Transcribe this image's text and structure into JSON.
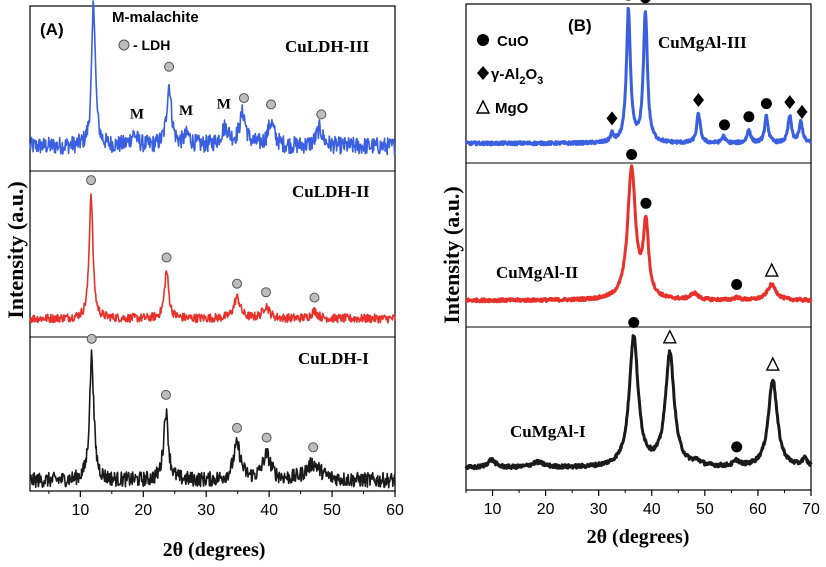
{
  "chart_data": [
    {
      "type": "line",
      "panel_label": "(A)",
      "xlabel": "2θ (degrees)",
      "ylabel": "Intensity (a.u.)",
      "xlim": [
        2,
        60
      ],
      "xticks": [
        10,
        20,
        30,
        40,
        50,
        60
      ],
      "legend": [
        {
          "marker": "text",
          "symbol": "M",
          "label": "M-malachite"
        },
        {
          "marker": "gray-circle",
          "label": "- LDH"
        }
      ],
      "series": [
        {
          "name": "CuLDH-III",
          "color": "#3a5fe0",
          "baseline_noise": 0.06,
          "peaks": [
            {
              "x": 12.1,
              "height": 1.0,
              "width": 0.35
            },
            {
              "x": 24.1,
              "height": 0.42,
              "width": 0.45
            },
            {
              "x": 18.5,
              "height": 0.08,
              "width": 0.6
            },
            {
              "x": 27.0,
              "height": 0.07,
              "width": 0.6
            },
            {
              "x": 33.0,
              "height": 0.12,
              "width": 0.8
            },
            {
              "x": 35.8,
              "height": 0.22,
              "width": 0.6
            },
            {
              "x": 40.3,
              "height": 0.16,
              "width": 0.6
            },
            {
              "x": 48.0,
              "height": 0.12,
              "width": 0.6
            }
          ],
          "ldh_markers": [
            12.1,
            24.1,
            36.0,
            40.3,
            48.3
          ],
          "m_labels": [
            {
              "x": 19.0,
              "text": "M"
            },
            {
              "x": 26.8,
              "text": "M"
            },
            {
              "x": 32.8,
              "text": "M"
            }
          ]
        },
        {
          "name": "CuLDH-II",
          "color": "#e8312b",
          "baseline_noise": 0.035,
          "peaks": [
            {
              "x": 11.7,
              "height": 1.0,
              "width": 0.35
            },
            {
              "x": 23.7,
              "height": 0.38,
              "width": 0.4
            },
            {
              "x": 34.9,
              "height": 0.17,
              "width": 0.6
            },
            {
              "x": 39.5,
              "height": 0.1,
              "width": 0.6
            },
            {
              "x": 47.2,
              "height": 0.06,
              "width": 0.6
            }
          ],
          "ldh_markers": [
            11.7,
            23.7,
            34.9,
            39.5,
            47.2
          ]
        },
        {
          "name": "CuLDH-I",
          "color": "#1a1a1a",
          "baseline_noise": 0.06,
          "peaks": [
            {
              "x": 11.8,
              "height": 1.0,
              "width": 0.4
            },
            {
              "x": 23.6,
              "height": 0.55,
              "width": 0.45
            },
            {
              "x": 34.9,
              "height": 0.28,
              "width": 0.7
            },
            {
              "x": 39.6,
              "height": 0.2,
              "width": 0.8
            },
            {
              "x": 47.0,
              "height": 0.13,
              "width": 1.4
            }
          ],
          "ldh_markers": [
            11.8,
            23.6,
            34.9,
            39.6,
            47.0
          ]
        }
      ]
    },
    {
      "type": "line",
      "panel_label": "(B)",
      "xlabel": "2θ (degrees)",
      "ylabel": "Intensity (a.u.)",
      "xlim": [
        5,
        70
      ],
      "xticks": [
        10,
        20,
        30,
        40,
        50,
        60,
        70
      ],
      "legend": [
        {
          "marker": "circle",
          "label": "CuO"
        },
        {
          "marker": "diamond",
          "label": "γ-Al2O3"
        },
        {
          "marker": "triangle",
          "label": "MgO"
        }
      ],
      "series": [
        {
          "name": "CuMgAl-III",
          "color": "#3a5fe0",
          "baseline_noise": 0.012,
          "peaks": [
            {
              "x": 32.5,
              "height": 0.06,
              "width": 0.35
            },
            {
              "x": 35.6,
              "height": 1.0,
              "width": 0.45
            },
            {
              "x": 38.8,
              "height": 0.98,
              "width": 0.45
            },
            {
              "x": 48.8,
              "height": 0.22,
              "width": 0.4
            },
            {
              "x": 53.5,
              "height": 0.05,
              "width": 0.4
            },
            {
              "x": 58.3,
              "height": 0.1,
              "width": 0.4
            },
            {
              "x": 61.6,
              "height": 0.2,
              "width": 0.4
            },
            {
              "x": 66.0,
              "height": 0.2,
              "width": 0.4
            },
            {
              "x": 68.1,
              "height": 0.16,
              "width": 0.4
            }
          ],
          "cuo_markers": [
            35.6,
            38.8,
            53.7,
            58.3,
            61.6
          ],
          "al2o3_markers": [
            32.5,
            48.8,
            66.0,
            68.3
          ],
          "mgo_markers": []
        },
        {
          "name": "CuMgAl-II",
          "color": "#e8312b",
          "baseline_noise": 0.012,
          "peaks": [
            {
              "x": 36.2,
              "height": 1.0,
              "width": 0.9
            },
            {
              "x": 38.9,
              "height": 0.55,
              "width": 0.6
            },
            {
              "x": 48.0,
              "height": 0.05,
              "width": 0.8
            },
            {
              "x": 56.0,
              "height": 0.02,
              "width": 0.6
            },
            {
              "x": 62.6,
              "height": 0.12,
              "width": 1.0
            }
          ],
          "cuo_markers": [
            36.2,
            38.9,
            56.0
          ],
          "al2o3_markers": [],
          "mgo_markers": [
            62.6
          ]
        },
        {
          "name": "CuMgAl-I",
          "color": "#1a1a1a",
          "baseline_noise": 0.015,
          "peaks": [
            {
              "x": 9.8,
              "height": 0.06,
              "width": 0.9
            },
            {
              "x": 18.5,
              "height": 0.04,
              "width": 1.5
            },
            {
              "x": 36.6,
              "height": 1.0,
              "width": 1.0
            },
            {
              "x": 43.4,
              "height": 0.87,
              "width": 1.0
            },
            {
              "x": 48.5,
              "height": 0.03,
              "width": 0.9
            },
            {
              "x": 56.0,
              "height": 0.04,
              "width": 0.7
            },
            {
              "x": 62.8,
              "height": 0.68,
              "width": 1.0
            },
            {
              "x": 68.8,
              "height": 0.06,
              "width": 0.6
            }
          ],
          "cuo_markers": [
            36.6,
            56.0
          ],
          "al2o3_markers": [],
          "mgo_markers": [
            43.4,
            62.8
          ]
        }
      ]
    }
  ]
}
